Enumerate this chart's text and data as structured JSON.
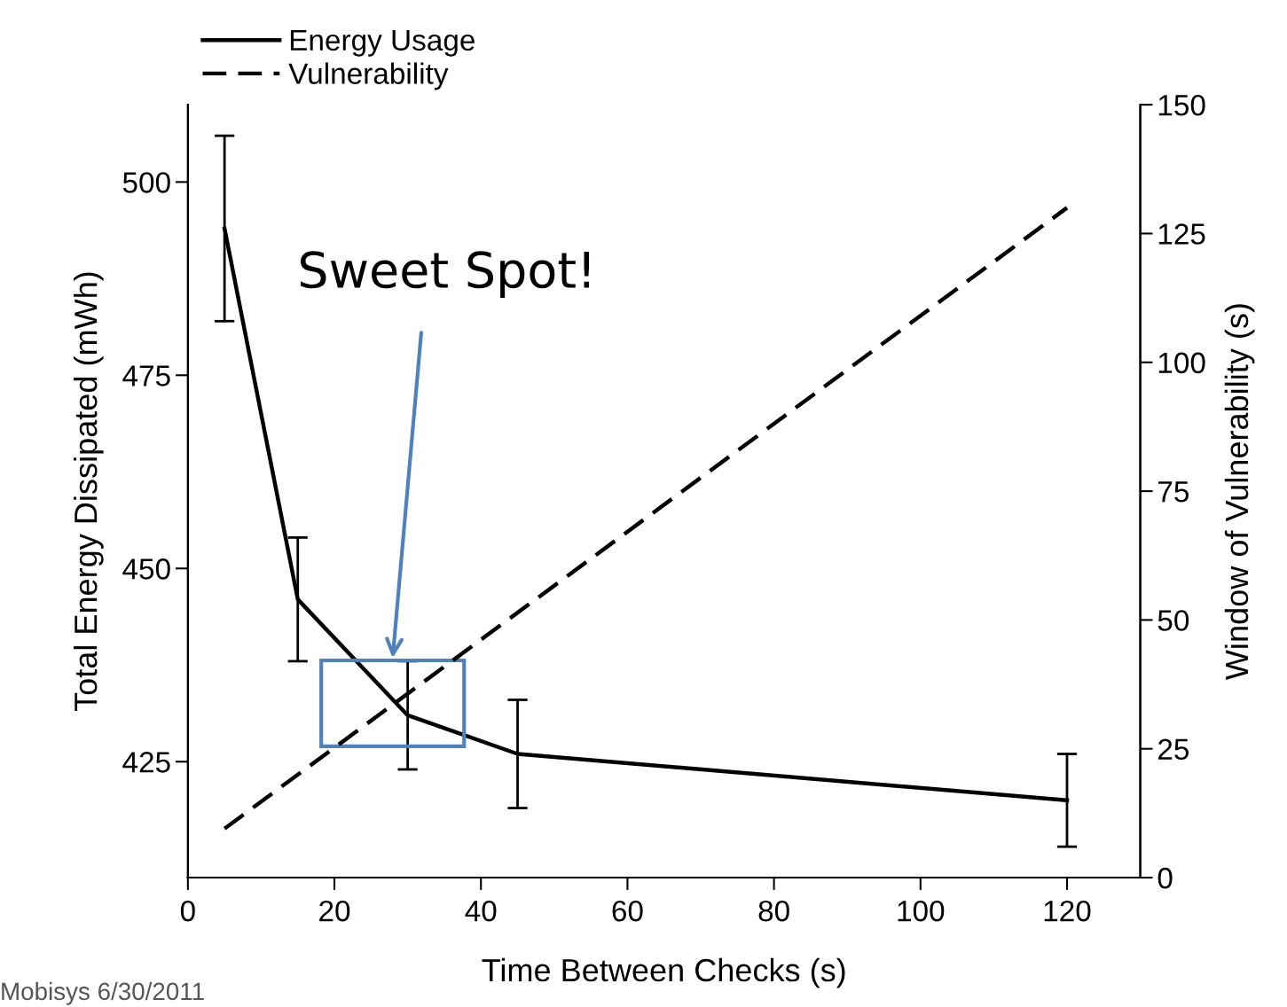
{
  "chart_data": {
    "type": "line",
    "xlabel": "Time Between Checks (s)",
    "ylabel": "Total Energy Dissipated (mWh)",
    "y2label": "Window of Vulnerability (s)",
    "series": [
      {
        "name": "Energy Usage",
        "color": "#000000",
        "x": [
          5,
          15,
          30,
          45,
          120
        ],
        "values": [
          494,
          446,
          431,
          426,
          420
        ],
        "errors": [
          12,
          8,
          7,
          7,
          6
        ],
        "line_style": "solid"
      },
      {
        "name": "Vulnerability",
        "color": "#000000",
        "x": [
          5,
          120
        ],
        "values": [
          9.5,
          130
        ],
        "axis": "y2",
        "line_style": "dashed"
      }
    ],
    "xlim": [
      0,
      130
    ],
    "xticks": [
      0,
      20,
      40,
      60,
      80,
      100,
      120
    ],
    "ylim": [
      410,
      510
    ],
    "yticks": [
      425,
      450,
      475,
      500
    ],
    "y2lim": [
      0,
      150
    ],
    "y2ticks": [
      0,
      25,
      50,
      75,
      100,
      125,
      150
    ],
    "marker": "none",
    "grid": false,
    "legend": "top left",
    "annotations": [
      "Sweet Spot!",
      "Mobisys 6/30/2011"
    ]
  }
}
